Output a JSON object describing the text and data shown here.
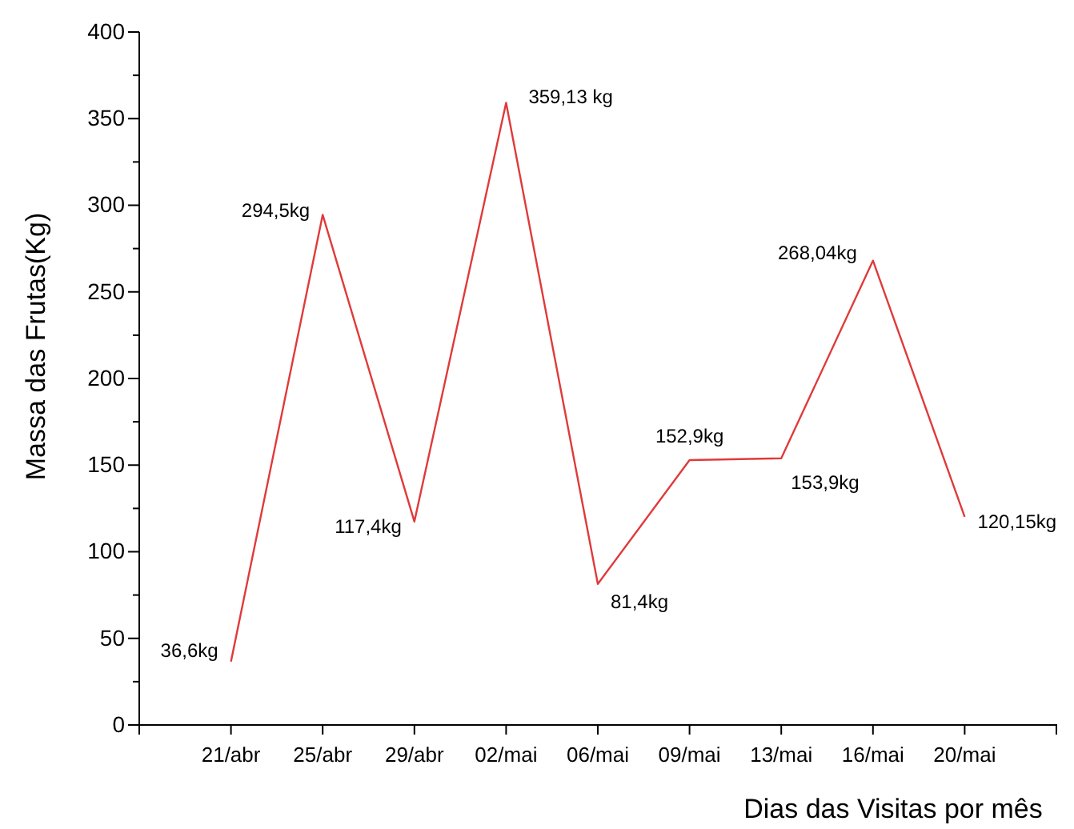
{
  "chart_data": {
    "type": "line",
    "xlabel": "Dias das Visitas por mês",
    "ylabel": "Massa das Frutas(Kg)",
    "categories": [
      "21/abr",
      "25/abr",
      "29/abr",
      "02/mai",
      "06/mai",
      "09/mai",
      "13/mai",
      "16/mai",
      "20/mai"
    ],
    "series": [
      {
        "color": "#e03a3a",
        "values": [
          36.6,
          294.5,
          117.4,
          359.13,
          81.4,
          152.9,
          153.9,
          268.04,
          120.15
        ],
        "value_labels": [
          "36,6kg",
          "294,5kg",
          "117,4kg",
          "359,13 kg",
          "81,4kg",
          "152,9kg",
          "153,9kg",
          "268,04kg",
          "120,15kg"
        ]
      }
    ],
    "ylim": [
      0,
      400
    ],
    "yticks": [
      0,
      {
        "value": 25,
        "label": null
      },
      50,
      {
        "value": 75,
        "label": null
      },
      100,
      {
        "value": 125,
        "label": null
      },
      150,
      {
        "value": 175,
        "label": null
      },
      200,
      {
        "value": 225,
        "label": null
      },
      250,
      {
        "value": 275,
        "label": null
      },
      300,
      {
        "value": 325,
        "label": null
      },
      350,
      {
        "value": 375,
        "label": null
      },
      400
    ],
    "marker": "none",
    "line_style": "solid"
  }
}
